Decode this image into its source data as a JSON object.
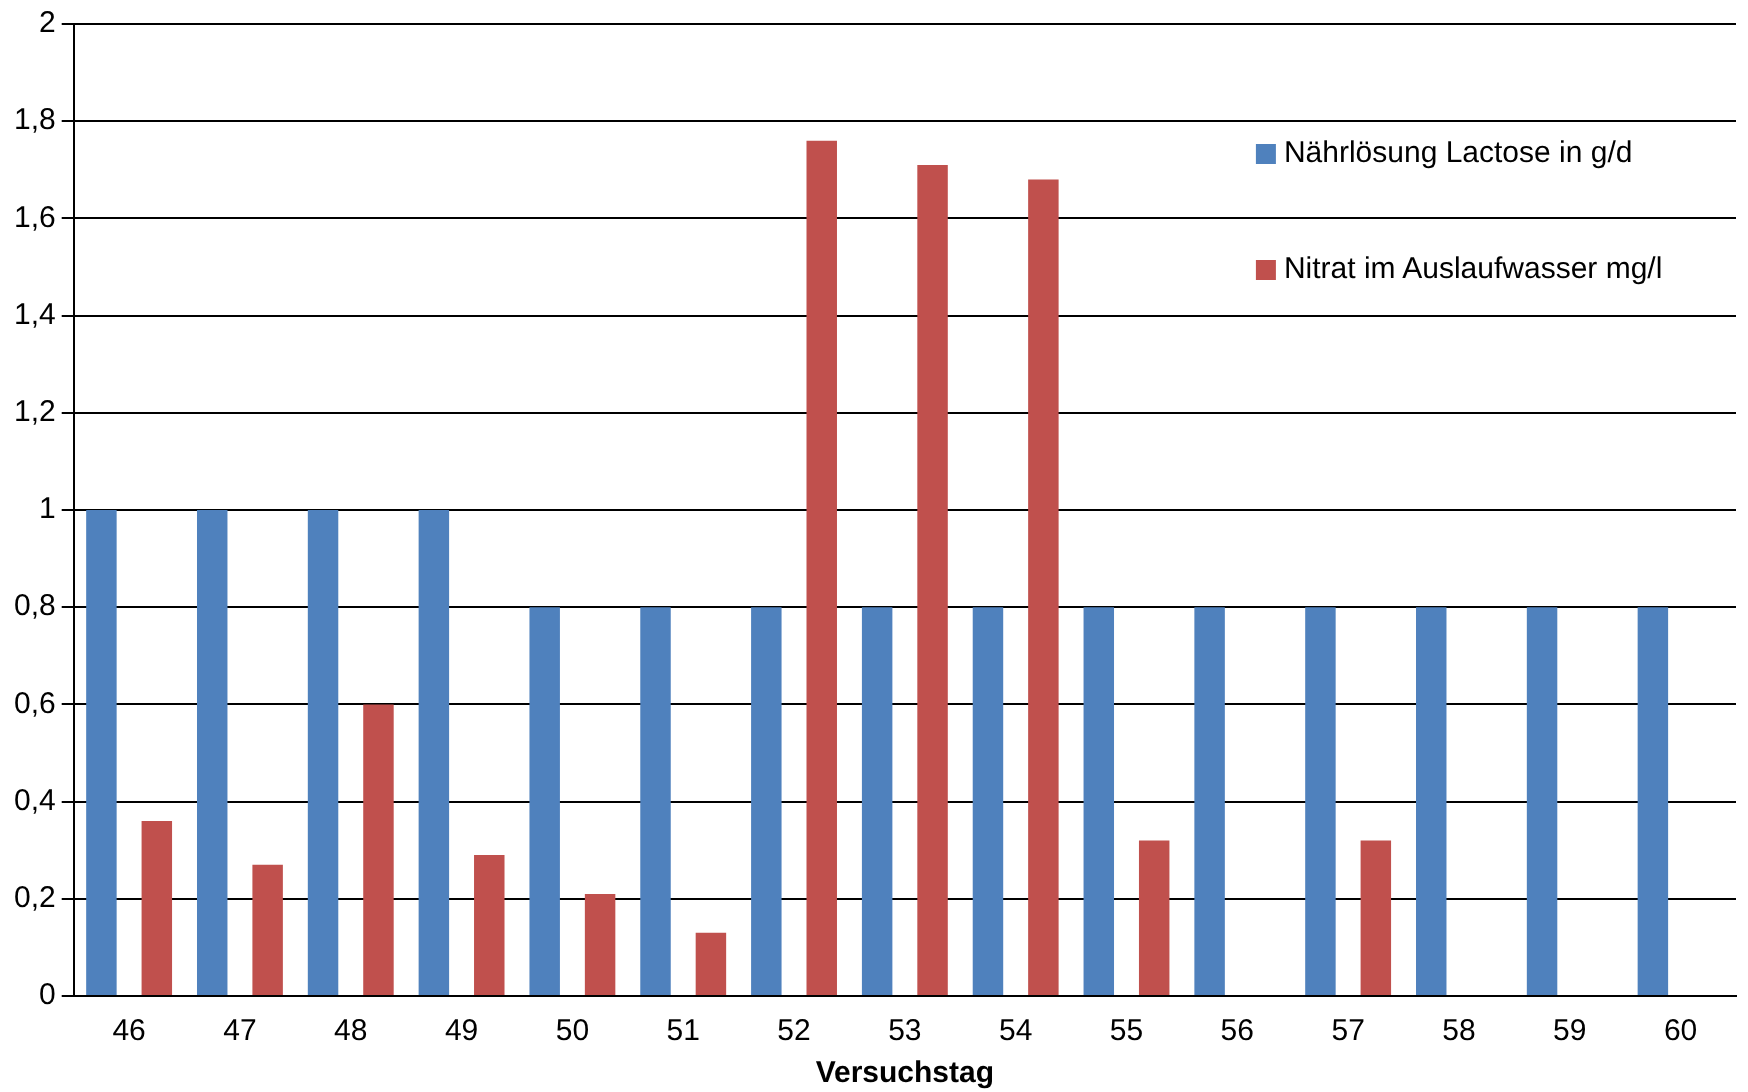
{
  "chart_data": {
    "type": "bar",
    "xlabel": "Versuchstag",
    "categories": [
      "46",
      "47",
      "48",
      "49",
      "50",
      "51",
      "52",
      "53",
      "54",
      "55",
      "56",
      "57",
      "58",
      "59",
      "60"
    ],
    "series": [
      {
        "name": "Nährlösung Lactose in g/d",
        "color": "#4f81bd",
        "values": [
          1,
          1,
          1,
          1,
          0.8,
          0.8,
          0.8,
          0.8,
          0.8,
          0.8,
          0.8,
          0.8,
          0.8,
          0.8,
          0.8
        ]
      },
      {
        "name": "Nitrat im Auslaufwasser mg/l",
        "color": "#c0504d",
        "values": [
          0.36,
          0.27,
          0.6,
          0.29,
          0.21,
          0.13,
          1.76,
          1.71,
          1.68,
          0.32,
          null,
          0.32,
          null,
          null,
          null
        ]
      }
    ],
    "ylim": [
      0,
      2
    ],
    "yticks": [
      0,
      {
        "value": 0.2,
        "label": "0,2"
      },
      {
        "value": 0.4,
        "label": "0,4"
      },
      {
        "value": 0.6,
        "label": "0,6"
      },
      {
        "value": 0.8,
        "label": "0,8"
      },
      1,
      {
        "value": 1.2,
        "label": "1,2"
      },
      {
        "value": 1.4,
        "label": "1,4"
      },
      {
        "value": 1.6,
        "label": "1,6"
      },
      {
        "value": 1.8,
        "label": "1,8"
      },
      2
    ],
    "grid": "y",
    "legend": "top right"
  }
}
